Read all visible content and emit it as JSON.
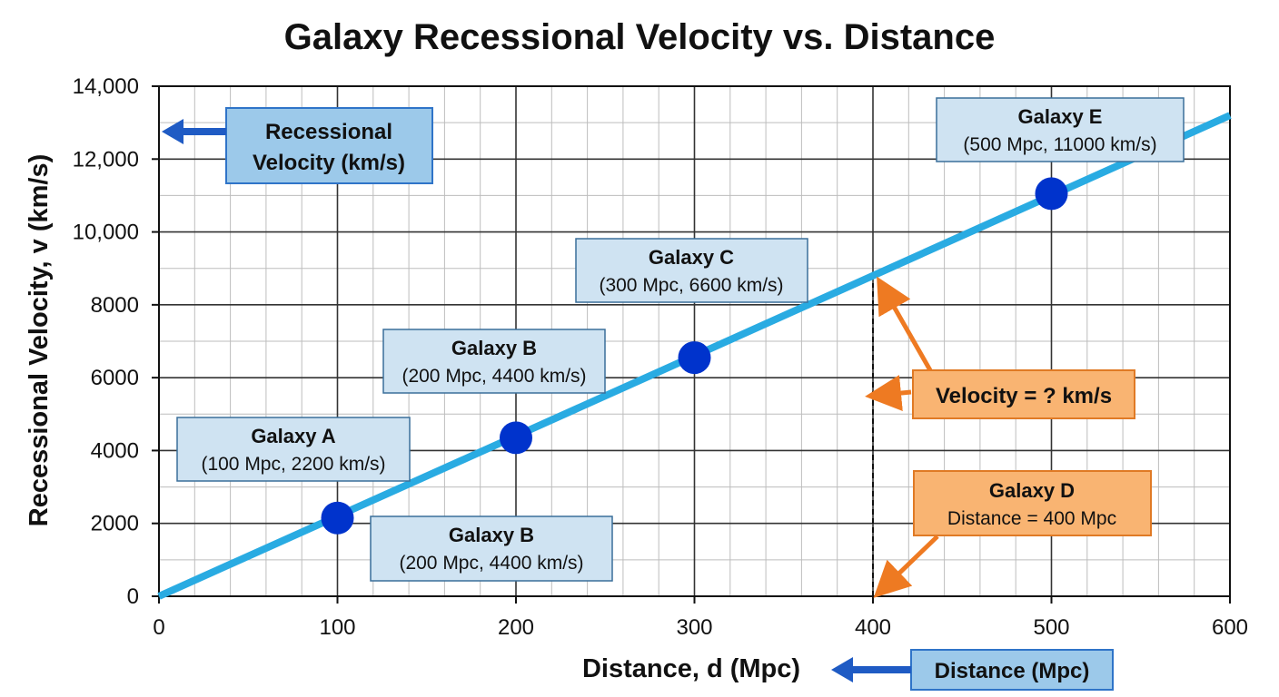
{
  "colors": {
    "line": "#29abe2",
    "point": "#0033cc",
    "box_fill": "#cfe3f2",
    "box_border": "#3a6f9a",
    "blue_callout_fill": "#9cc9ea",
    "blue_callout_border": "#2f74c8",
    "blue_arrow": "#1f5bc4",
    "orange_fill": "#f9b472",
    "orange_border": "#e07a25",
    "orange_arrow": "#ee7a22",
    "grid": "#bdbdbd",
    "grid_major": "#333333"
  },
  "chart_data": {
    "type": "scatter",
    "title": "Galaxy Recessional Velocity vs. Distance",
    "xlabel": "Distance, d (Mpc)",
    "ylabel": "Recessional Velocity, v (km/s)",
    "xlim": [
      0,
      600
    ],
    "ylim": [
      0,
      14000
    ],
    "x_ticks": [
      {
        "value": 0,
        "label": "0"
      },
      {
        "value": 100,
        "label": "100"
      },
      {
        "value": 200,
        "label": "200"
      },
      {
        "value": 300,
        "label": "300"
      },
      {
        "value": 400,
        "label": "400"
      },
      {
        "value": 500,
        "label": "500"
      },
      {
        "value": 600,
        "label": "600"
      }
    ],
    "y_ticks": [
      {
        "value": 0,
        "label": "0"
      },
      {
        "value": 2000,
        "label": "2000"
      },
      {
        "value": 4000,
        "label": "4000"
      },
      {
        "value": 6000,
        "label": "6000"
      },
      {
        "value": 8000,
        "label": "8000"
      },
      {
        "value": 10000,
        "label": "10,000"
      },
      {
        "value": 12000,
        "label": "12,000"
      },
      {
        "value": 14000,
        "label": "14,000"
      }
    ],
    "grid": true,
    "fit_line": {
      "x": [
        0,
        600
      ],
      "y": [
        0,
        13200
      ]
    },
    "points": [
      {
        "x": 100,
        "y": 2150
      },
      {
        "x": 200,
        "y": 4350
      },
      {
        "x": 300,
        "y": 6550
      },
      {
        "x": 500,
        "y": 11050
      }
    ],
    "marker_line_x": 400,
    "annotations": [
      {
        "id": "galaxy-a",
        "title": "Galaxy A",
        "text": "(100 Mpc, 2200 km/s)"
      },
      {
        "id": "galaxy-b-upper",
        "title": "Galaxy B",
        "text": "(200 Mpc, 4400 km/s)"
      },
      {
        "id": "galaxy-b-lower",
        "title": "Galaxy B",
        "text": "(200 Mpc, 4400 km/s)"
      },
      {
        "id": "galaxy-c",
        "title": "Galaxy C",
        "text": "(300 Mpc, 6600 km/s)"
      },
      {
        "id": "galaxy-e",
        "title": "Galaxy E",
        "text": "(500 Mpc, 11000 km/s)"
      },
      {
        "id": "galaxy-d",
        "title": "Galaxy D",
        "text": "Distance = 400 Mpc"
      }
    ],
    "callouts": {
      "velocity_axis_line1": "Recessional",
      "velocity_axis_line2": "Velocity (km/s)",
      "distance_axis": "Distance (Mpc)",
      "velocity_question": "Velocity = ? km/s"
    }
  }
}
